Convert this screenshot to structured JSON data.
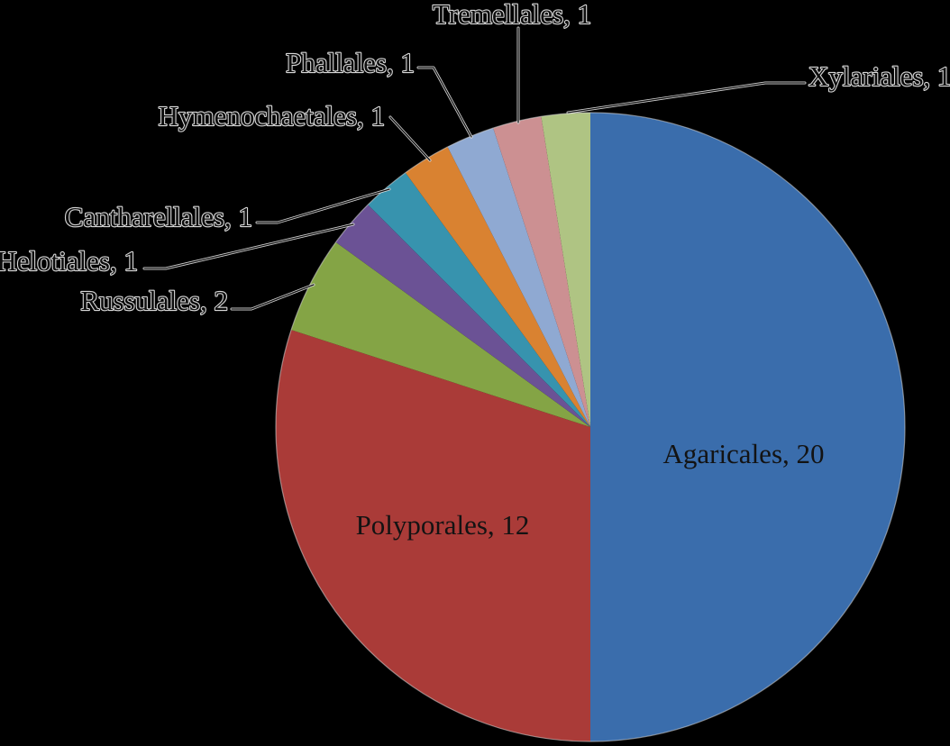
{
  "figure": {
    "background_color": "#000000",
    "text_color": "#0d0d0d",
    "text_halo_color": "#d6d6d6",
    "leader_line_color": "#111111"
  },
  "chart_data": {
    "type": "pie",
    "title": "",
    "total": 40,
    "start_angle_deg": 0,
    "direction": "clockwise",
    "legend_position": "none",
    "labels_show_values": true,
    "slices": [
      {
        "label": "Agaricales",
        "value": 20,
        "color": "#3a6dac",
        "display": "Agaricales, 20",
        "label_placement": "inside"
      },
      {
        "label": "Polyporales",
        "value": 12,
        "color": "#aa3b38",
        "display": "Polyporales, 12",
        "label_placement": "inside"
      },
      {
        "label": "Russulales",
        "value": 2,
        "color": "#84a445",
        "display": "Russulales, 2",
        "label_placement": "outside"
      },
      {
        "label": "Helotiales",
        "value": 1,
        "color": "#6b5295",
        "display": "Helotiales, 1",
        "label_placement": "outside"
      },
      {
        "label": "Cantharellales",
        "value": 1,
        "color": "#3793ae",
        "display": "Cantharellales, 1",
        "label_placement": "outside"
      },
      {
        "label": "Hymenochaetales",
        "value": 1,
        "color": "#d98231",
        "display": "Hymenochaetales, 1",
        "label_placement": "outside"
      },
      {
        "label": "Phallales",
        "value": 1,
        "color": "#8fa9d2",
        "display": "Phallales, 1",
        "label_placement": "outside"
      },
      {
        "label": "Tremellales",
        "value": 1,
        "color": "#cc9092",
        "display": "Tremellales, 1",
        "label_placement": "outside"
      },
      {
        "label": "Xylariales",
        "value": 1,
        "color": "#afc483",
        "display": "Xylariales, 1",
        "label_placement": "outside"
      }
    ]
  }
}
